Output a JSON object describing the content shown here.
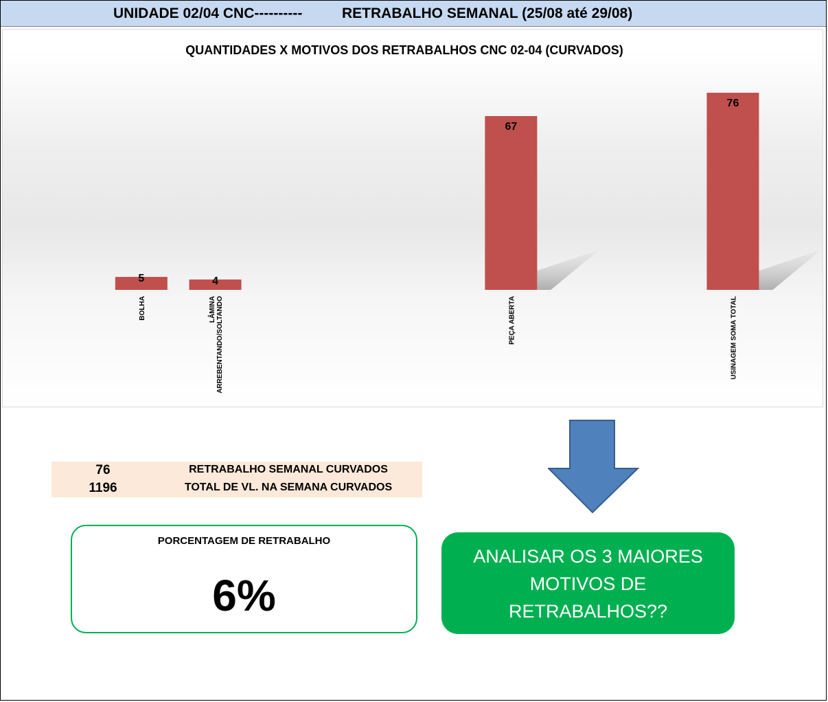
{
  "header": {
    "left": "UNIDADE 02/04 CNC----------",
    "right": "RETRABALHO SEMANAL (25/08 até 29/08)"
  },
  "chart_data": {
    "type": "bar",
    "title": "QUANTIDADES X MOTIVOS DOS RETRABALHOS CNC 02-04 (CURVADOS)",
    "categories": [
      "BOLHA",
      "LÂMINA ARREBENTANDO/SOLTANDO",
      "",
      "",
      "",
      "PEÇA ABERTA",
      "",
      "",
      "USINAGEM SOMA TOTAL"
    ],
    "category_lines": [
      [
        "BOLHA"
      ],
      [
        "LÂMINA",
        "ARREBENTANDO/SOLTANDO"
      ],
      [],
      [],
      [],
      [
        "PEÇA ABERTA"
      ],
      [],
      [],
      [
        "USINAGEM SOMA TOTAL"
      ]
    ],
    "values": [
      5,
      4,
      null,
      null,
      null,
      67,
      null,
      null,
      76
    ],
    "data_labels": [
      "5",
      "4",
      "",
      "",
      "",
      "67",
      "",
      "",
      "76"
    ],
    "bar_color": "#c0504d",
    "ylim": [
      0,
      76
    ],
    "grid": false,
    "legend": "none"
  },
  "summary": {
    "rows": [
      {
        "value": "76",
        "label": "RETRABALHO SEMANAL CURVADOS"
      },
      {
        "value": "1196",
        "label": "TOTAL DE VL. NA SEMANA CURVADOS"
      }
    ]
  },
  "percentage": {
    "label": "PORCENTAGEM DE RETRABALHO",
    "value": "6%"
  },
  "action": {
    "line1": "ANALISAR OS 3 MAIORES",
    "line2": "MOTIVOS DE",
    "line3": "RETRABALHOS??"
  },
  "colors": {
    "header_bg": "#c6d9f1",
    "bar": "#c0504d",
    "summary_bg": "#fde9d9",
    "accent_green": "#00b050",
    "arrow_blue": "#4f81bd"
  }
}
